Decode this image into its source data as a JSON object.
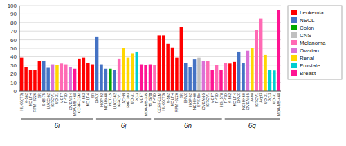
{
  "chart_data": {
    "type": "bar",
    "groups": [
      {
        "name": "6i",
        "categories": [
          "HL-60(TB)",
          "K-562",
          "MOLT-4",
          "RPMI-8226",
          "SR",
          "SNB-75",
          "LUCC-62",
          "IGROV1",
          "UO-31",
          "MCF7",
          "T-47D",
          "OVCAR-4",
          "MDA-MB-468",
          "CCRF-CEM",
          "K-563",
          "MOLT-4",
          "SR"
        ],
        "values": [
          39,
          28,
          25,
          25,
          35,
          35,
          27,
          31,
          30,
          32,
          31,
          28,
          26,
          38,
          39,
          33,
          31
        ],
        "colors": [
          "#FF0000",
          "#FF0000",
          "#FF0000",
          "#FF0000",
          "#FF0000",
          "#4472C4",
          "#4472C4",
          "#DA70D6",
          "#FFD700",
          "#FF69B4",
          "#FF69B4",
          "#DA70D6",
          "#FF1493",
          "#FF0000",
          "#FF0000",
          "#FF0000",
          "#FF0000"
        ]
      },
      {
        "name": "6j",
        "categories": [
          "EKVX",
          "HOP-92",
          "NCI-H460",
          "HCT-15",
          "LUCC-62",
          "IGROV1",
          "ACHN",
          "RXF 393",
          "UO-31",
          "PC-3",
          "MCF7",
          "MDA-MB-335",
          "HS_578t"
        ],
        "values": [
          63,
          31,
          26,
          26,
          25,
          38,
          50,
          39,
          44,
          46,
          31,
          30,
          31
        ],
        "colors": [
          "#4472C4",
          "#4472C4",
          "#4472C4",
          "#00AA00",
          "#4472C4",
          "#FF69B4",
          "#FFD700",
          "#FFD700",
          "#FFD700",
          "#00CED1",
          "#FF1493",
          "#FF1493",
          "#FF1493"
        ]
      },
      {
        "name": "6n",
        "categories": [
          "T-47D",
          "CCRF-CLM",
          "HL-60(TB)",
          "K-562",
          "MOLT-4",
          "RPMI-8226",
          "SR",
          "EKVX",
          "HOP-92",
          "NCI-H460",
          "SYK-5io",
          "OVCAN-5",
          "IGROV1",
          "MCF7",
          "T-47D",
          "HS_578"
        ],
        "values": [
          30,
          65,
          65,
          55,
          51,
          39,
          75,
          33,
          28,
          37,
          39,
          35,
          35,
          25,
          30,
          25
        ],
        "colors": [
          "#FF69B4",
          "#FF0000",
          "#FF0000",
          "#FF0000",
          "#FF0000",
          "#FF0000",
          "#FF0000",
          "#4472C4",
          "#4472C4",
          "#4472C4",
          "#C0C0C0",
          "#DA70D6",
          "#FF69B4",
          "#FF1493",
          "#FF69B4",
          "#FF1493"
        ]
      },
      {
        "name": "6q",
        "categories": [
          "T-47D",
          "K-562",
          "MOLT-4",
          "EKVX",
          "NCl-H460",
          "OVCAN-5",
          "A498",
          "IGROV1",
          "Acpl3",
          "UO-31",
          "PC-3",
          "UO-31",
          "MDA-MB-468"
        ],
        "values": [
          33,
          32,
          34,
          46,
          33,
          47,
          50,
          71,
          85,
          42,
          25,
          24,
          95
        ],
        "colors": [
          "#FF69B4",
          "#FF0000",
          "#FF0000",
          "#4472C4",
          "#4472C4",
          "#DA70D6",
          "#FFD700",
          "#FF69B4",
          "#FF69B4",
          "#FFD700",
          "#00CED1",
          "#00CED1",
          "#FF1493"
        ]
      }
    ],
    "legend_entries": [
      {
        "name": "Leukemia",
        "color": "#FF0000"
      },
      {
        "name": "NSCL",
        "color": "#4472C4"
      },
      {
        "name": "Colon",
        "color": "#00AA00"
      },
      {
        "name": "CNS",
        "color": "#C0C0C0"
      },
      {
        "name": "Melanoma",
        "color": "#FF69B4"
      },
      {
        "name": "Ovarian",
        "color": "#DA70D6"
      },
      {
        "name": "Renal",
        "color": "#FFD700"
      },
      {
        "name": "Prostate",
        "color": "#00CED1"
      },
      {
        "name": "Breast",
        "color": "#FF1493"
      }
    ],
    "ylim": [
      0,
      100
    ],
    "yticks": [
      0,
      10,
      20,
      30,
      40,
      50,
      60,
      70,
      80,
      90,
      100
    ],
    "grid": true
  }
}
